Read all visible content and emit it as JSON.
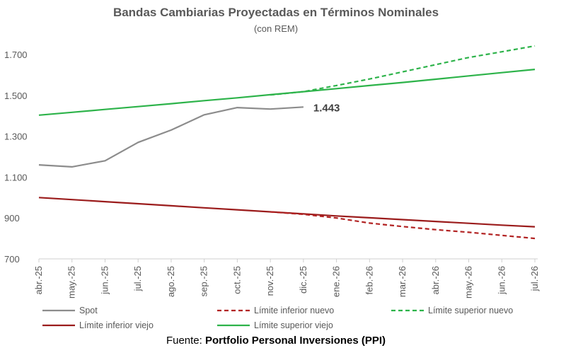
{
  "chart_data": {
    "type": "line",
    "title": "Bandas Cambiarias Proyectadas en Términos Nominales",
    "subtitle": "(con REM)",
    "categories": [
      "abr.-25",
      "may.-25",
      "jun.-25",
      "jul.-25",
      "ago.-25",
      "sep.-25",
      "oct.-25",
      "nov.-25",
      "dic.-25",
      "ene.-26",
      "feb.-26",
      "mar.-26",
      "abr.-26",
      "may.-26",
      "jun.-26",
      "jul.-26"
    ],
    "y_ticks": [
      "700",
      "900",
      "1.100",
      "1.300",
      "1.500",
      "1.700"
    ],
    "ylim": [
      700,
      1800
    ],
    "grid": false,
    "series": [
      {
        "name": "Spot",
        "color": "#8c8c8c",
        "dash": false,
        "values": [
          1160,
          1150,
          1180,
          1270,
          1330,
          1405,
          1440,
          1433,
          1443,
          null,
          null,
          null,
          null,
          null,
          null,
          null
        ]
      },
      {
        "name": "Límite inferior nuevo",
        "color": "#b22222",
        "dash": true,
        "values": [
          null,
          null,
          null,
          null,
          null,
          null,
          null,
          930,
          918,
          900,
          875,
          858,
          843,
          830,
          815,
          800
        ]
      },
      {
        "name": "Límite superior nuevo",
        "color": "#2db34a",
        "dash": true,
        "values": [
          null,
          null,
          null,
          null,
          null,
          null,
          null,
          1502,
          1518,
          1548,
          1580,
          1615,
          1650,
          1685,
          1713,
          1742
        ]
      },
      {
        "name": "Límite inferior viejo",
        "color": "#9b1c1c",
        "dash": false,
        "values": [
          1000,
          990,
          980,
          970,
          960,
          950,
          940,
          930,
          920,
          910,
          901,
          892,
          883,
          874,
          865,
          857
        ]
      },
      {
        "name": "Límite superior viejo",
        "color": "#2db34a",
        "dash": false,
        "values": [
          1403,
          1417,
          1431,
          1445,
          1459,
          1474,
          1488,
          1503,
          1518,
          1533,
          1548,
          1563,
          1579,
          1595,
          1611,
          1627
        ]
      }
    ],
    "annotations": [
      {
        "text": "1.443",
        "series": "Spot",
        "index": 8
      }
    ],
    "legend_position": "bottom"
  },
  "source": {
    "prefix": "Fuente: ",
    "name": "Portfolio Personal Inversiones (PPI)"
  }
}
